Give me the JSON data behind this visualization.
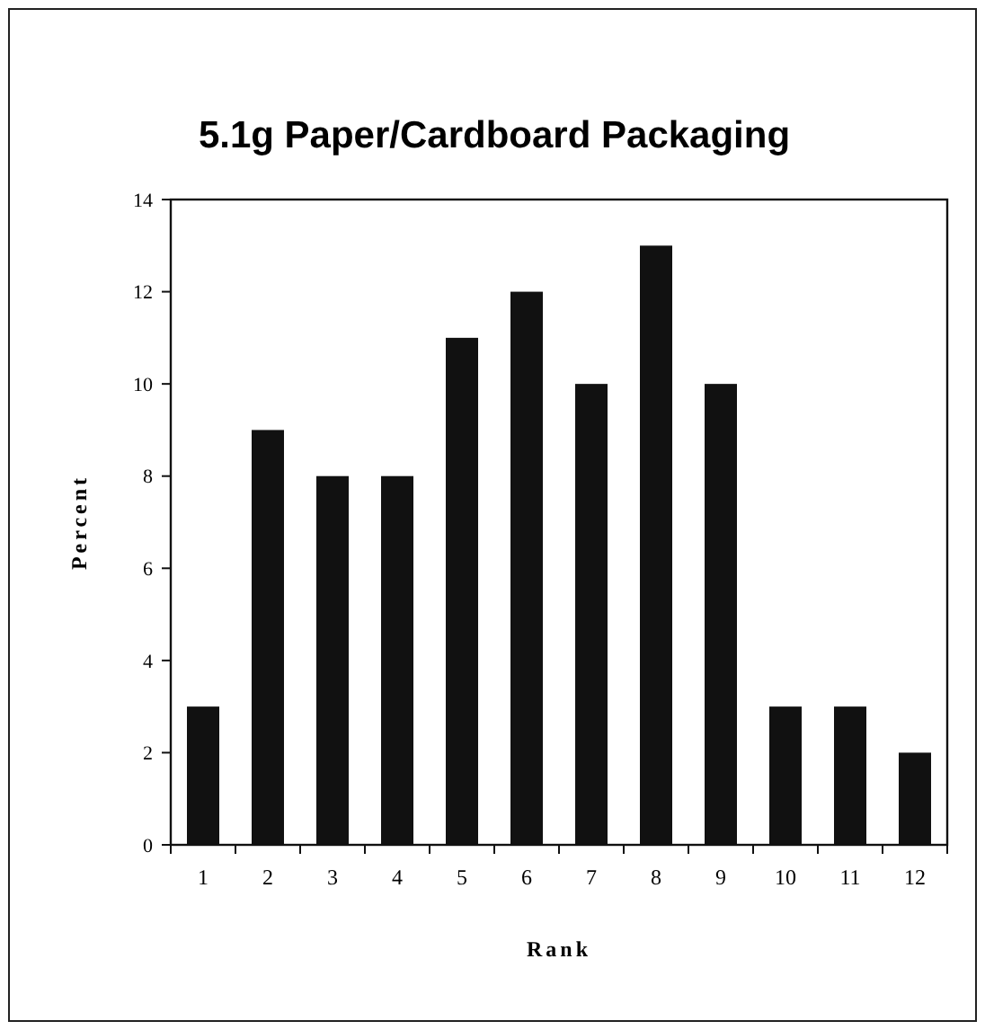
{
  "chart_data": {
    "type": "bar",
    "title": "5.1g  Paper/Cardboard Packaging",
    "xlabel": "Rank",
    "ylabel": "Percent",
    "categories": [
      "1",
      "2",
      "3",
      "4",
      "5",
      "6",
      "7",
      "8",
      "9",
      "10",
      "11",
      "12"
    ],
    "values": [
      3,
      9,
      8,
      8,
      11,
      12,
      10,
      13,
      10,
      3,
      3,
      2
    ],
    "color": "#111111",
    "ylim": [
      0,
      14
    ],
    "yticks": [
      0,
      2,
      4,
      6,
      8,
      10,
      12,
      14
    ]
  }
}
